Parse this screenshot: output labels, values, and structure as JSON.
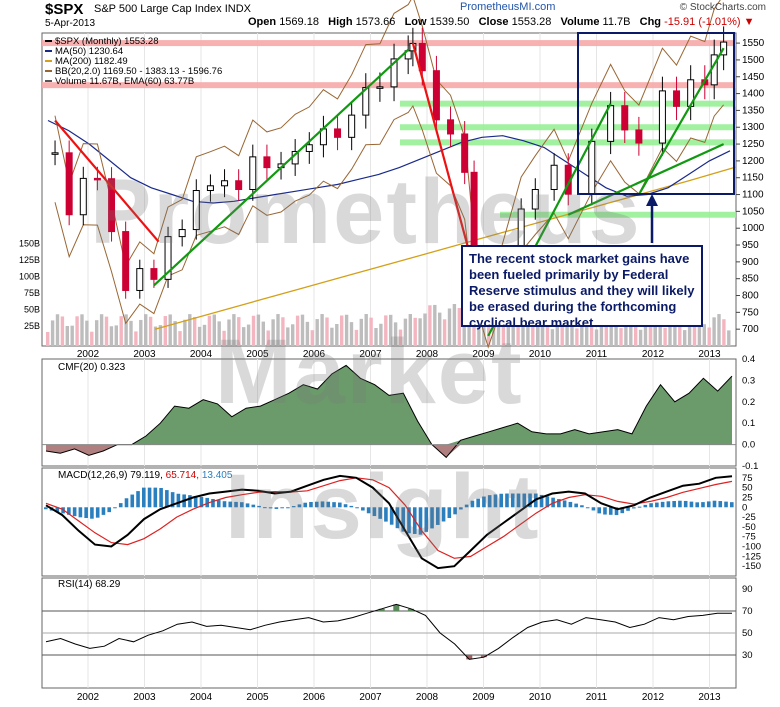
{
  "header": {
    "symbol": "$SPX",
    "description": "S&P 500 Large Cap Index",
    "exchange": "INDX",
    "date": "5-Apr-2013",
    "open_label": "Open",
    "open": "1569.18",
    "high_label": "High",
    "high": "1573.66",
    "low_label": "Low",
    "low": "1539.50",
    "close_label": "Close",
    "close": "1553.28",
    "volume_label": "Volume",
    "volume": "11.7B",
    "chg_label": "Chg",
    "chg": "-15.91 (-1.01%)",
    "source": "© StockCharts.com",
    "credit": "PrometheusMI.com"
  },
  "legend": [
    {
      "text": "$SPX (Monthly) 1553.28",
      "color": "#000000"
    },
    {
      "text": "MA(50) 1230.64",
      "color": "#1a2a8a"
    },
    {
      "text": "MA(200) 1182.49",
      "color": "#d4a017"
    },
    {
      "text": "BB(20,2.0) 1169.50 - 1383.13 - 1596.76",
      "color": "#996633"
    },
    {
      "text": "Volume 11.67B, EMA(60) 63.77B",
      "color": "#555555"
    }
  ],
  "watermark": [
    "Prometheus",
    "Market",
    "Insight"
  ],
  "annotation": "The recent stock market gains have been fueled primarily by Federal Reserve stimulus and they will likely be erased during the forthcoming cyclical bear market.",
  "panels": {
    "cmf_label": "CMF(20) 0.323",
    "macd_label": "MACD(12,26,9) 79.119,",
    "macd_signal": "65.714,",
    "macd_hist": "13.405",
    "rsi_label": "RSI(14) 68.29"
  },
  "colors": {
    "up": "#000000",
    "down": "#cc0033",
    "ma50": "#1a2a8a",
    "ma200": "#d4a017",
    "bb": "#996633",
    "trend_up": "#119911",
    "trend_down": "#ee1111",
    "support": "#90ee90",
    "resistance": "#f7a8a8",
    "cmf_fill": "#6b9b6b",
    "cmf_neg": "#b08080",
    "macd_hist": "#2a7fbf",
    "annotation": "#0a1a66"
  },
  "chart_data": [
    {
      "type": "candlestick",
      "title": "$SPX (Monthly) 1553.28",
      "x": [
        "2001-06",
        "2001-09",
        "2001-12",
        "2002-03",
        "2002-06",
        "2002-09",
        "2002-12",
        "2003-03",
        "2003-06",
        "2003-09",
        "2003-12",
        "2004-03",
        "2004-06",
        "2004-09",
        "2004-12",
        "2005-03",
        "2005-06",
        "2005-09",
        "2005-12",
        "2006-03",
        "2006-06",
        "2006-09",
        "2006-12",
        "2007-03",
        "2007-06",
        "2007-09",
        "2007-10",
        "2007-12",
        "2008-03",
        "2008-06",
        "2008-09",
        "2008-11",
        "2009-02",
        "2009-06",
        "2009-09",
        "2009-12",
        "2010-04",
        "2010-07",
        "2010-12",
        "2011-04",
        "2011-07",
        "2011-10",
        "2012-03",
        "2012-06",
        "2012-09",
        "2012-12",
        "2013-02",
        "2013-04"
      ],
      "close": [
        1224,
        1040,
        1148,
        1147,
        990,
        815,
        880,
        848,
        975,
        996,
        1112,
        1126,
        1141,
        1115,
        1212,
        1180,
        1191,
        1228,
        1248,
        1295,
        1270,
        1336,
        1418,
        1420,
        1503,
        1527,
        1549,
        1468,
        1322,
        1280,
        1166,
        896,
        735,
        919,
        1057,
        1115,
        1187,
        1101,
        1258,
        1364,
        1292,
        1253,
        1408,
        1362,
        1441,
        1426,
        1515,
        1553
      ],
      "ylim": [
        650,
        1580
      ],
      "y_ticks": [
        700,
        750,
        800,
        850,
        900,
        950,
        1000,
        1050,
        1100,
        1150,
        1200,
        1250,
        1300,
        1350,
        1400,
        1450,
        1500,
        1550
      ],
      "x_ticks": [
        "2002",
        "2003",
        "2004",
        "2005",
        "2006",
        "2007",
        "2008",
        "2009",
        "2010",
        "2011",
        "2012",
        "2013"
      ],
      "ma50": [
        1320,
        1290,
        1250,
        1200,
        1150,
        1120,
        1100,
        1080,
        1075,
        1080,
        1090,
        1100,
        1110,
        1120,
        1130,
        1145,
        1160,
        1180,
        1205,
        1230,
        1255,
        1270,
        1275,
        1260,
        1240,
        1200,
        1160,
        1120,
        1095,
        1100,
        1120,
        1160,
        1200,
        1230
      ],
      "ma200": [
        700,
        740,
        780,
        820,
        860,
        900,
        940,
        980,
        1020,
        1060,
        1100,
        1140,
        1182
      ],
      "volume_ticks": [
        "25B",
        "50B",
        "75B",
        "100B",
        "125B",
        "150B"
      ],
      "resistance_levels": [
        1550,
        1425
      ],
      "support_levels": [
        1370,
        1300,
        1255,
        1040
      ]
    },
    {
      "type": "area",
      "title": "CMF(20) 0.323",
      "ylim": [
        -0.1,
        0.4
      ],
      "y_ticks": [
        -0.1,
        0.0,
        0.1,
        0.2,
        0.3,
        0.4
      ],
      "values": [
        -0.03,
        -0.04,
        -0.02,
        -0.05,
        -0.03,
        0.0,
        0.0,
        0.04,
        0.1,
        0.18,
        0.17,
        0.21,
        0.19,
        0.13,
        0.17,
        0.18,
        0.21,
        0.24,
        0.28,
        0.26,
        0.33,
        0.37,
        0.31,
        0.28,
        0.23,
        0.24,
        0.11,
        0.0,
        -0.06,
        0.02,
        0.04,
        0.06,
        0.08,
        0.1,
        0.06,
        0.05,
        0.05,
        0.07,
        0.05,
        0.06,
        0.07,
        0.05,
        0.18,
        0.28,
        0.2,
        0.24,
        0.31,
        0.25,
        0.32
      ]
    },
    {
      "type": "line",
      "title": "MACD(12,26,9) 79.119, 65.714, 13.405",
      "ylim": [
        -175,
        100
      ],
      "y_ticks": [
        -150,
        -125,
        -100,
        -75,
        -50,
        -25,
        0,
        25,
        50,
        75
      ],
      "series": [
        {
          "name": "MACD",
          "values": [
            5,
            -20,
            -60,
            -95,
            -100,
            -70,
            -30,
            -5,
            10,
            25,
            35,
            40,
            45,
            42,
            35,
            40,
            55,
            70,
            80,
            75,
            50,
            10,
            -60,
            -130,
            -155,
            -150,
            -110,
            -70,
            -40,
            -10,
            20,
            35,
            40,
            35,
            10,
            -5,
            5,
            25,
            40,
            55,
            60,
            75,
            79
          ]
        },
        {
          "name": "Signal",
          "values": [
            10,
            -5,
            -35,
            -65,
            -90,
            -95,
            -80,
            -55,
            -25,
            -5,
            12,
            25,
            32,
            38,
            40,
            39,
            42,
            55,
            68,
            75,
            70,
            50,
            5,
            -60,
            -110,
            -130,
            -125,
            -100,
            -75,
            -45,
            -15,
            10,
            25,
            32,
            28,
            15,
            8,
            15,
            25,
            38,
            48,
            58,
            66
          ]
        }
      ]
    },
    {
      "type": "line",
      "title": "RSI(14) 68.29",
      "ylim": [
        0,
        100
      ],
      "y_ticks": [
        30,
        50,
        70,
        90
      ],
      "values": [
        42,
        45,
        40,
        36,
        38,
        45,
        42,
        48,
        52,
        58,
        60,
        56,
        57,
        55,
        53,
        57,
        60,
        62,
        64,
        60,
        61,
        64,
        68,
        72,
        76,
        72,
        66,
        50,
        40,
        26,
        28,
        36,
        46,
        55,
        60,
        62,
        58,
        64,
        62,
        60,
        55,
        58,
        64,
        62,
        65,
        66,
        68,
        68
      ]
    }
  ]
}
